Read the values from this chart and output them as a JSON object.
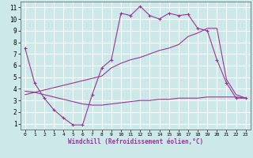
{
  "xlabel": "Windchill (Refroidissement éolien,°C)",
  "bg_color": "#cce8e8",
  "grid_color": "#ffffff",
  "line_color": "#993399",
  "xlim": [
    -0.5,
    23.5
  ],
  "ylim": [
    0.5,
    11.5
  ],
  "yticks": [
    1,
    2,
    3,
    4,
    5,
    6,
    7,
    8,
    9,
    10,
    11
  ],
  "xticks": [
    0,
    1,
    2,
    3,
    4,
    5,
    6,
    7,
    8,
    9,
    10,
    11,
    12,
    13,
    14,
    15,
    16,
    17,
    18,
    19,
    20,
    21,
    22,
    23
  ],
  "line1_x": [
    0,
    1,
    2,
    3,
    4,
    5,
    6,
    7,
    8,
    9,
    10,
    11,
    12,
    13,
    14,
    15,
    16,
    17,
    18,
    19,
    20,
    21,
    22,
    23
  ],
  "line1_y": [
    7.5,
    4.5,
    3.2,
    2.2,
    1.5,
    0.9,
    0.9,
    3.5,
    5.8,
    6.5,
    10.5,
    10.3,
    11.1,
    10.3,
    10.0,
    10.5,
    10.3,
    10.4,
    9.2,
    9.0,
    6.5,
    4.5,
    3.2,
    3.2
  ],
  "line2_x": [
    0,
    1,
    2,
    3,
    4,
    5,
    6,
    7,
    8,
    9,
    10,
    11,
    12,
    13,
    14,
    15,
    16,
    17,
    18,
    19,
    20,
    21,
    22,
    23
  ],
  "line2_y": [
    3.8,
    3.7,
    3.5,
    3.3,
    3.1,
    2.9,
    2.7,
    2.6,
    2.6,
    2.7,
    2.8,
    2.9,
    3.0,
    3.0,
    3.1,
    3.1,
    3.2,
    3.2,
    3.2,
    3.3,
    3.3,
    3.3,
    3.3,
    3.2
  ],
  "line3_x": [
    0,
    1,
    2,
    3,
    4,
    5,
    6,
    7,
    8,
    9,
    10,
    11,
    12,
    13,
    14,
    15,
    16,
    17,
    18,
    19,
    20,
    21,
    22,
    23
  ],
  "line3_y": [
    3.5,
    3.7,
    3.9,
    4.1,
    4.3,
    4.5,
    4.7,
    4.9,
    5.1,
    5.8,
    6.2,
    6.5,
    6.7,
    7.0,
    7.3,
    7.5,
    7.8,
    8.5,
    8.8,
    9.2,
    9.2,
    4.8,
    3.5,
    3.2
  ]
}
